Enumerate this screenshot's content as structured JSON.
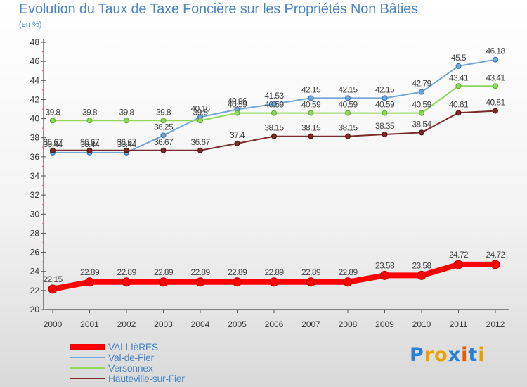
{
  "chart_data": {
    "type": "line",
    "title": "Evolution du Taux de Taxe Foncière sur les Propriétés Non Bâties",
    "ylabel": "(en %)",
    "xlabel": "",
    "ylim": [
      20,
      48
    ],
    "yticks": [
      "20",
      "22",
      "24",
      "26",
      "28",
      "30",
      "32",
      "34",
      "36",
      "38",
      "40",
      "42",
      "44",
      "46",
      "48"
    ],
    "categories": [
      "2000",
      "2001",
      "2002",
      "2003",
      "2004",
      "2005",
      "2006",
      "2007",
      "2008",
      "2009",
      "2010",
      "2011",
      "2012"
    ],
    "grid": false,
    "legend_position": "bottom-left",
    "series": [
      {
        "name": "VALLIèRES",
        "color": "#ff0000",
        "values": [
          22.15,
          22.89,
          22.89,
          22.89,
          22.89,
          22.89,
          22.89,
          22.89,
          22.89,
          23.58,
          23.58,
          24.72,
          24.72
        ],
        "labels": [
          "22.15",
          "22.89",
          "22.89",
          "22.89",
          "22.89",
          "22.89",
          "22.89",
          "22.89",
          "22.89",
          "23.58",
          "23.58",
          "24.72",
          "24.72"
        ]
      },
      {
        "name": "Val-de-Fier",
        "color": "#6fa6d6",
        "values": [
          36.44,
          36.44,
          36.44,
          38.25,
          40.16,
          40.96,
          41.53,
          42.15,
          42.15,
          42.15,
          42.79,
          45.5,
          46.18
        ],
        "labels": [
          "36.44",
          "36.44",
          "36.44",
          "38.25",
          "40.16",
          "40.96",
          "41.53",
          "42.15",
          "42.15",
          "42.15",
          "42.79",
          "45.5",
          "46.18"
        ]
      },
      {
        "name": "Versonnex",
        "color": "#90d658",
        "values": [
          39.8,
          39.8,
          39.8,
          39.8,
          39.8,
          40.59,
          40.59,
          40.59,
          40.59,
          40.59,
          40.59,
          43.41,
          43.41
        ],
        "labels": [
          "39.8",
          "39.8",
          "39.8",
          "39.8",
          "39.8",
          "40.59",
          "40.59",
          "40.59",
          "40.59",
          "40.59",
          "40.59",
          "43.41",
          "43.41"
        ]
      },
      {
        "name": "Hauteville-sur-Fier",
        "color": "#7a2a2a",
        "values": [
          36.67,
          36.67,
          36.67,
          36.67,
          36.67,
          37.4,
          38.15,
          38.15,
          38.15,
          38.35,
          38.54,
          40.61,
          40.81
        ],
        "labels": [
          "36.67",
          "36.67",
          "36.67",
          "36.67",
          "36.67",
          "37.4",
          "38.15",
          "38.15",
          "38.15",
          "38.35",
          "38.54",
          "40.61",
          "40.81"
        ]
      }
    ]
  },
  "logo": {
    "letters": [
      "P",
      "r",
      "o",
      "x",
      "i",
      "t",
      "i"
    ],
    "colors": [
      "#2a7fd4",
      "#e8a200",
      "#e8a200",
      "#2a7fd4",
      "#e85a00",
      "#2a7fd4",
      "#e8a200"
    ]
  }
}
